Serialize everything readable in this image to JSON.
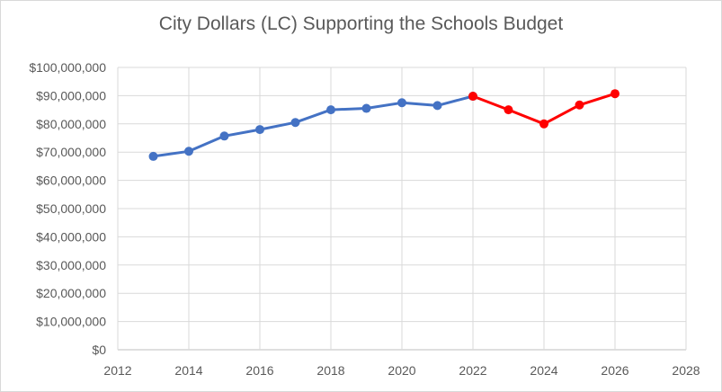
{
  "chart_data": {
    "type": "line",
    "title": "City Dollars (LC) Supporting the Schools  Budget",
    "xlabel": "",
    "ylabel": "",
    "xlim": [
      2012,
      2028
    ],
    "ylim": [
      0,
      100000000
    ],
    "x_ticks": [
      "2012",
      "2014",
      "2016",
      "2018",
      "2020",
      "2022",
      "2024",
      "2026",
      "2028"
    ],
    "y_ticks": [
      "$0",
      "$10,000,000",
      "$20,000,000",
      "$30,000,000",
      "$40,000,000",
      "$50,000,000",
      "$60,000,000",
      "$70,000,000",
      "$80,000,000",
      "$90,000,000",
      "$100,000,000"
    ],
    "grid": true,
    "legend": "none",
    "series": [
      {
        "color": "#4472c4",
        "x": [
          2013,
          2014,
          2015,
          2016,
          2017,
          2018,
          2019,
          2020,
          2021,
          2022
        ],
        "values": [
          68500000,
          70300000,
          75700000,
          78000000,
          80500000,
          85000000,
          85500000,
          87500000,
          86500000,
          89800000
        ]
      },
      {
        "color": "#ff0000",
        "x": [
          2022,
          2023,
          2024,
          2025,
          2026
        ],
        "values": [
          89800000,
          85000000,
          80000000,
          86700000,
          90700000
        ]
      }
    ]
  }
}
